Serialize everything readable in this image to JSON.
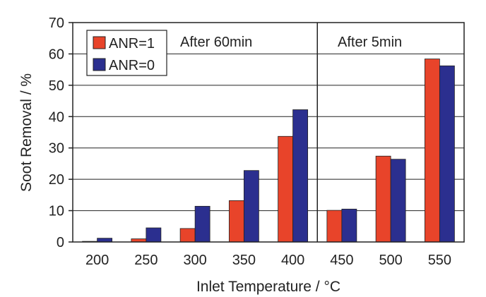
{
  "chart_data": {
    "type": "bar",
    "title": "",
    "xlabel": "Inlet Temperature / °C",
    "ylabel": "Soot Removal / %",
    "ylim": [
      0,
      70
    ],
    "yticks": [
      0,
      10,
      20,
      30,
      40,
      50,
      60,
      70
    ],
    "grid": "horizontal",
    "legend_position": "top-left",
    "categories": [
      "200",
      "250",
      "300",
      "350",
      "400",
      "450",
      "500",
      "550"
    ],
    "series": [
      {
        "name": "ANR=1",
        "color": "#e8442a",
        "values": [
          0.2,
          1.0,
          4.3,
          13.2,
          33.7,
          10.1,
          27.4,
          58.4
        ]
      },
      {
        "name": "ANR=0",
        "color": "#2b2f8f",
        "values": [
          1.2,
          4.5,
          11.4,
          22.8,
          42.2,
          10.5,
          26.4,
          56.2
        ]
      }
    ],
    "annotations": [
      "After 60min",
      "After 5min"
    ],
    "divider_between_categories": [
      "400",
      "450"
    ]
  }
}
